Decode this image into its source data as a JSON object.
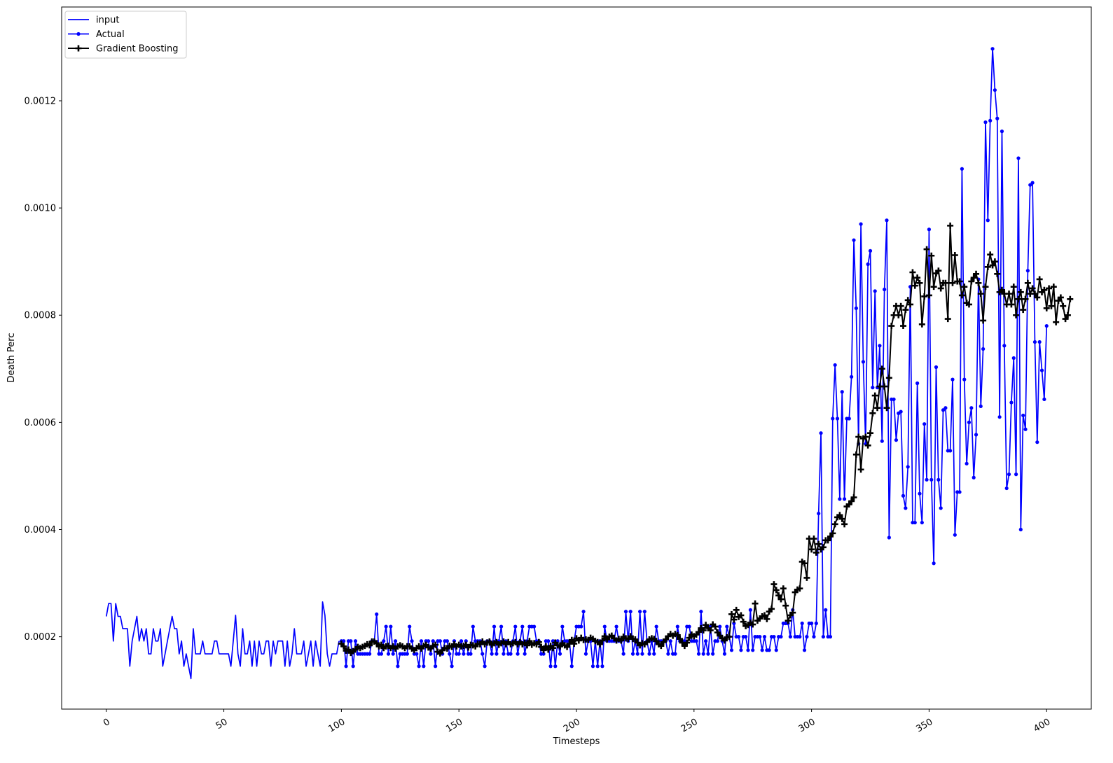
{
  "chart_data": {
    "type": "line",
    "title": "",
    "xlabel": "Timesteps",
    "ylabel": "Death Perc",
    "xlim": [
      -19,
      419
    ],
    "ylim": [
      6.5e-05,
      0.001375
    ],
    "x_ticks": [
      0,
      50,
      100,
      150,
      200,
      250,
      300,
      350,
      400
    ],
    "x_tick_labels": [
      "0",
      "50",
      "100",
      "150",
      "200",
      "250",
      "300",
      "350",
      "400"
    ],
    "y_ticks": [
      0.0002,
      0.0004,
      0.0006,
      0.0008,
      0.001,
      0.0012
    ],
    "y_tick_labels": [
      "0.0002",
      "0.0004",
      "0.0006",
      "0.0008",
      "0.0010",
      "0.0012"
    ],
    "grid": false,
    "legend_position": "top-left",
    "series": [
      {
        "name": "input",
        "color": "#0000ff",
        "marker": "none",
        "x_start": 0,
        "values": [
          0.000238,
          0.000262,
          0.000262,
          0.000192,
          0.000262,
          0.000238,
          0.000238,
          0.000215,
          0.000215,
          0.000215,
          0.000145,
          0.000192,
          0.000215,
          0.000238,
          0.000192,
          0.000215,
          0.000192,
          0.000215,
          0.000168,
          0.000168,
          0.000215,
          0.000192,
          0.000192,
          0.000215,
          0.000145,
          0.000168,
          0.000192,
          0.000215,
          0.000238,
          0.000215,
          0.000215,
          0.000168,
          0.000192,
          0.000145,
          0.000168,
          0.000145,
          0.000122,
          0.000215,
          0.000168,
          0.000168,
          0.000168,
          0.000192,
          0.000168,
          0.000168,
          0.000168,
          0.000168,
          0.000192,
          0.000192,
          0.000168,
          0.000168,
          0.000168,
          0.000168,
          0.000168,
          0.000145,
          0.000192,
          0.00024,
          0.000168,
          0.000145,
          0.000215,
          0.000168,
          0.000168,
          0.000192,
          0.000145,
          0.000192,
          0.000145,
          0.000192,
          0.000168,
          0.000168,
          0.000192,
          0.000192,
          0.000145,
          0.000192,
          0.000168,
          0.000192,
          0.000192,
          0.000192,
          0.000145,
          0.000192,
          0.000145,
          0.000168,
          0.000215,
          0.000168,
          0.000168,
          0.000168,
          0.000192,
          0.000145,
          0.000168,
          0.000192,
          0.000145,
          0.000192,
          0.000168,
          0.000145,
          0.000265,
          0.00024,
          0.000168,
          0.000145,
          0.000168,
          0.000168,
          0.000168,
          0.000192
        ]
      },
      {
        "name": "Actual",
        "color": "#0000ff",
        "marker": "dot",
        "x_start": 100,
        "values": [
          0.000192,
          0.000192,
          0.000145,
          0.000192,
          0.000192,
          0.000145,
          0.000192,
          0.000168,
          0.000168,
          0.000168,
          0.000168,
          0.000168,
          0.000168,
          0.000192,
          0.000192,
          0.000242,
          0.000168,
          0.000168,
          0.000192,
          0.000219,
          0.000168,
          0.000219,
          0.000168,
          0.000192,
          0.000145,
          0.000168,
          0.000168,
          0.000168,
          0.000168,
          0.000219,
          0.000192,
          0.000168,
          0.000168,
          0.000145,
          0.000192,
          0.000145,
          0.000192,
          0.000192,
          0.000168,
          0.000192,
          0.000145,
          0.000192,
          0.000192,
          0.000168,
          0.000192,
          0.000192,
          0.000168,
          0.000145,
          0.000192,
          0.000168,
          0.000168,
          0.000192,
          0.000168,
          0.000192,
          0.000168,
          0.000168,
          0.000219,
          0.000192,
          0.000192,
          0.000192,
          0.000168,
          0.000145,
          0.000192,
          0.000192,
          0.000168,
          0.000219,
          0.000168,
          0.000192,
          0.000219,
          0.000168,
          0.000192,
          0.000168,
          0.000168,
          0.000192,
          0.000219,
          0.000168,
          0.000192,
          0.000219,
          0.000168,
          0.000192,
          0.000219,
          0.000219,
          0.000219,
          0.000192,
          0.000192,
          0.000168,
          0.000168,
          0.000192,
          0.000192,
          0.000145,
          0.000192,
          0.000145,
          0.000192,
          0.000168,
          0.000219,
          0.000192,
          0.000192,
          0.000192,
          0.000145,
          0.000192,
          0.000219,
          0.000219,
          0.000219,
          0.000247,
          0.000168,
          0.000192,
          0.000192,
          0.000145,
          0.000192,
          0.000145,
          0.000192,
          0.000145,
          0.000219,
          0.000192,
          0.000192,
          0.000192,
          0.000192,
          0.000219,
          0.000192,
          0.000192,
          0.000168,
          0.000247,
          0.000192,
          0.000247,
          0.000168,
          0.000192,
          0.000168,
          0.000247,
          0.000168,
          0.000247,
          0.000192,
          0.000168,
          0.000192,
          0.000168,
          0.000219,
          0.000192,
          0.000192,
          0.000192,
          0.000192,
          0.000168,
          0.000192,
          0.000168,
          0.000168,
          0.000219,
          0.000192,
          0.000192,
          0.000192,
          0.000219,
          0.000219,
          0.000192,
          0.000192,
          0.000192,
          0.000168,
          0.000247,
          0.000168,
          0.000192,
          0.000168,
          0.000219,
          0.000168,
          0.000192,
          0.000192,
          0.000219,
          0.000192,
          0.000168,
          0.000219,
          0.0002,
          0.000175,
          0.000225,
          0.0002,
          0.0002,
          0.000175,
          0.0002,
          0.0002,
          0.000175,
          0.00025,
          0.000175,
          0.0002,
          0.0002,
          0.0002,
          0.000175,
          0.0002,
          0.000175,
          0.000175,
          0.0002,
          0.0002,
          0.000175,
          0.0002,
          0.0002,
          0.000225,
          0.000225,
          0.000225,
          0.0002,
          0.00025,
          0.0002,
          0.0002,
          0.0002,
          0.000225,
          0.000175,
          0.0002,
          0.000225,
          0.000225,
          0.0002,
          0.000225,
          0.00043,
          0.00058,
          0.0002,
          0.00025,
          0.0002,
          0.0002,
          0.000607,
          0.000707,
          0.000607,
          0.000457,
          0.000657,
          0.000457,
          0.000607,
          0.000607,
          0.000685,
          0.00094,
          0.000813,
          0.00056,
          0.00097,
          0.000713,
          0.00056,
          0.000895,
          0.00092,
          0.000665,
          0.000845,
          0.000665,
          0.000743,
          0.000565,
          0.000848,
          0.000977,
          0.000385,
          0.000643,
          0.000643,
          0.000567,
          0.000617,
          0.00062,
          0.000463,
          0.00044,
          0.000517,
          0.000853,
          0.000413,
          0.000413,
          0.000673,
          0.000467,
          0.000413,
          0.000597,
          0.000493,
          0.00096,
          0.000493,
          0.000337,
          0.000703,
          0.000493,
          0.00044,
          0.000623,
          0.000627,
          0.000547,
          0.000547,
          0.00068,
          0.00039,
          0.00047,
          0.00047,
          0.001073,
          0.00068,
          0.000523,
          0.0006,
          0.000627,
          0.000497,
          0.000577,
          0.000867,
          0.00063,
          0.000737,
          0.00116,
          0.000977,
          0.001163,
          0.001297,
          0.00122,
          0.001167,
          0.00061,
          0.001143,
          0.000743,
          0.000477,
          0.000503,
          0.000637,
          0.00072,
          0.000503,
          0.001093,
          0.0004,
          0.000613,
          0.000587,
          0.000883,
          0.001043,
          0.001047,
          0.00075,
          0.000563,
          0.00075,
          0.000697,
          0.000643,
          0.00078
        ]
      },
      {
        "name": "Gradient Boosting",
        "color": "#000000",
        "marker": "plus",
        "x_start": 100,
        "values": [
          0.000187,
          0.000182,
          0.000174,
          0.000176,
          0.00017,
          0.000173,
          0.000176,
          0.000181,
          0.000179,
          0.000181,
          0.000183,
          0.000186,
          0.000184,
          0.000191,
          0.000191,
          0.000188,
          0.000182,
          0.000185,
          0.000179,
          0.000182,
          0.000183,
          0.000179,
          0.000182,
          0.000178,
          0.000182,
          0.000184,
          0.000182,
          0.000179,
          0.000182,
          0.000182,
          0.000178,
          0.000175,
          0.000179,
          0.000182,
          0.000178,
          0.000183,
          0.000185,
          0.00018,
          0.000178,
          0.000183,
          0.000185,
          0.000172,
          0.000169,
          0.000175,
          0.000179,
          0.000178,
          0.000183,
          0.000181,
          0.000186,
          0.000182,
          0.000185,
          0.000182,
          0.000183,
          0.000185,
          0.00018,
          0.000185,
          0.000184,
          0.000182,
          0.000187,
          0.000186,
          0.000191,
          0.000186,
          0.000189,
          0.000191,
          0.000185,
          0.000188,
          0.00019,
          0.000185,
          0.000188,
          0.000191,
          0.000186,
          0.00019,
          0.000186,
          0.000188,
          0.00019,
          0.000186,
          0.00019,
          0.000186,
          0.000189,
          0.000184,
          0.000192,
          0.000185,
          0.000188,
          0.000186,
          0.00019,
          0.000181,
          0.000175,
          0.000182,
          0.000176,
          0.000183,
          0.000179,
          0.000189,
          0.000184,
          0.000182,
          0.000188,
          0.000184,
          0.000181,
          0.000187,
          0.000194,
          0.000187,
          0.000197,
          0.000193,
          0.000198,
          0.000194,
          0.000195,
          0.000194,
          0.000198,
          0.000196,
          0.000192,
          0.00019,
          0.000186,
          0.000193,
          0.000201,
          0.000195,
          0.0002,
          0.000202,
          0.000197,
          0.000193,
          0.000196,
          0.000193,
          0.0002,
          0.000197,
          0.000196,
          0.000201,
          0.000196,
          0.000195,
          0.000189,
          0.000184,
          0.000188,
          0.000186,
          0.00019,
          0.000195,
          0.000197,
          0.000196,
          0.000192,
          0.000186,
          0.000183,
          0.00019,
          0.000195,
          0.000201,
          0.000205,
          0.000202,
          0.000205,
          0.000203,
          0.000196,
          0.000189,
          0.000183,
          0.000189,
          0.000198,
          0.000204,
          0.000201,
          0.000204,
          0.000209,
          0.000216,
          0.000212,
          0.000222,
          0.000216,
          0.000212,
          0.000223,
          0.000219,
          0.000208,
          0.000202,
          0.000197,
          0.000193,
          0.000199,
          0.0002,
          0.000242,
          0.000232,
          0.00025,
          0.000237,
          0.00024,
          0.000228,
          0.00022,
          0.000222,
          0.000226,
          0.000223,
          0.000262,
          0.00023,
          0.000234,
          0.000238,
          0.00024,
          0.000233,
          0.000247,
          0.000252,
          0.000298,
          0.000287,
          0.000277,
          0.00027,
          0.00029,
          0.000258,
          0.00023,
          0.00024,
          0.000245,
          0.000283,
          0.000288,
          0.00029,
          0.00034,
          0.000337,
          0.00031,
          0.000383,
          0.000363,
          0.000383,
          0.000357,
          0.000373,
          0.000363,
          0.000367,
          0.00038,
          0.00038,
          0.000387,
          0.000393,
          0.00041,
          0.000423,
          0.000427,
          0.00042,
          0.00041,
          0.000443,
          0.000447,
          0.000453,
          0.00046,
          0.00054,
          0.000573,
          0.000512,
          0.00057,
          0.000573,
          0.000557,
          0.00058,
          0.000617,
          0.00065,
          0.000627,
          0.000667,
          0.0007,
          0.000667,
          0.000627,
          0.000683,
          0.00078,
          0.0008,
          0.000817,
          0.0008,
          0.000817,
          0.00078,
          0.00081,
          0.000828,
          0.00082,
          0.00088,
          0.000855,
          0.00087,
          0.00086,
          0.000783,
          0.000835,
          0.000923,
          0.000837,
          0.000911,
          0.000853,
          0.000878,
          0.000883,
          0.00085,
          0.00086,
          0.00086,
          0.000793,
          0.000967,
          0.00086,
          0.000912,
          0.000863,
          0.000863,
          0.000837,
          0.000853,
          0.000823,
          0.00082,
          0.000863,
          0.00087,
          0.000877,
          0.00086,
          0.00084,
          0.00079,
          0.000853,
          0.00089,
          0.000913,
          0.000893,
          0.0009,
          0.000877,
          0.000843,
          0.000847,
          0.00084,
          0.00082,
          0.00084,
          0.00082,
          0.000853,
          0.0008,
          0.00083,
          0.000843,
          0.00081,
          0.00083,
          0.00086,
          0.00084,
          0.00085,
          0.00084,
          0.000833,
          0.000867,
          0.000843,
          0.000847,
          0.000813,
          0.00085,
          0.000817,
          0.000853,
          0.000787,
          0.000827,
          0.000833,
          0.000817,
          0.000793,
          0.0008,
          0.00083
        ]
      }
    ]
  }
}
